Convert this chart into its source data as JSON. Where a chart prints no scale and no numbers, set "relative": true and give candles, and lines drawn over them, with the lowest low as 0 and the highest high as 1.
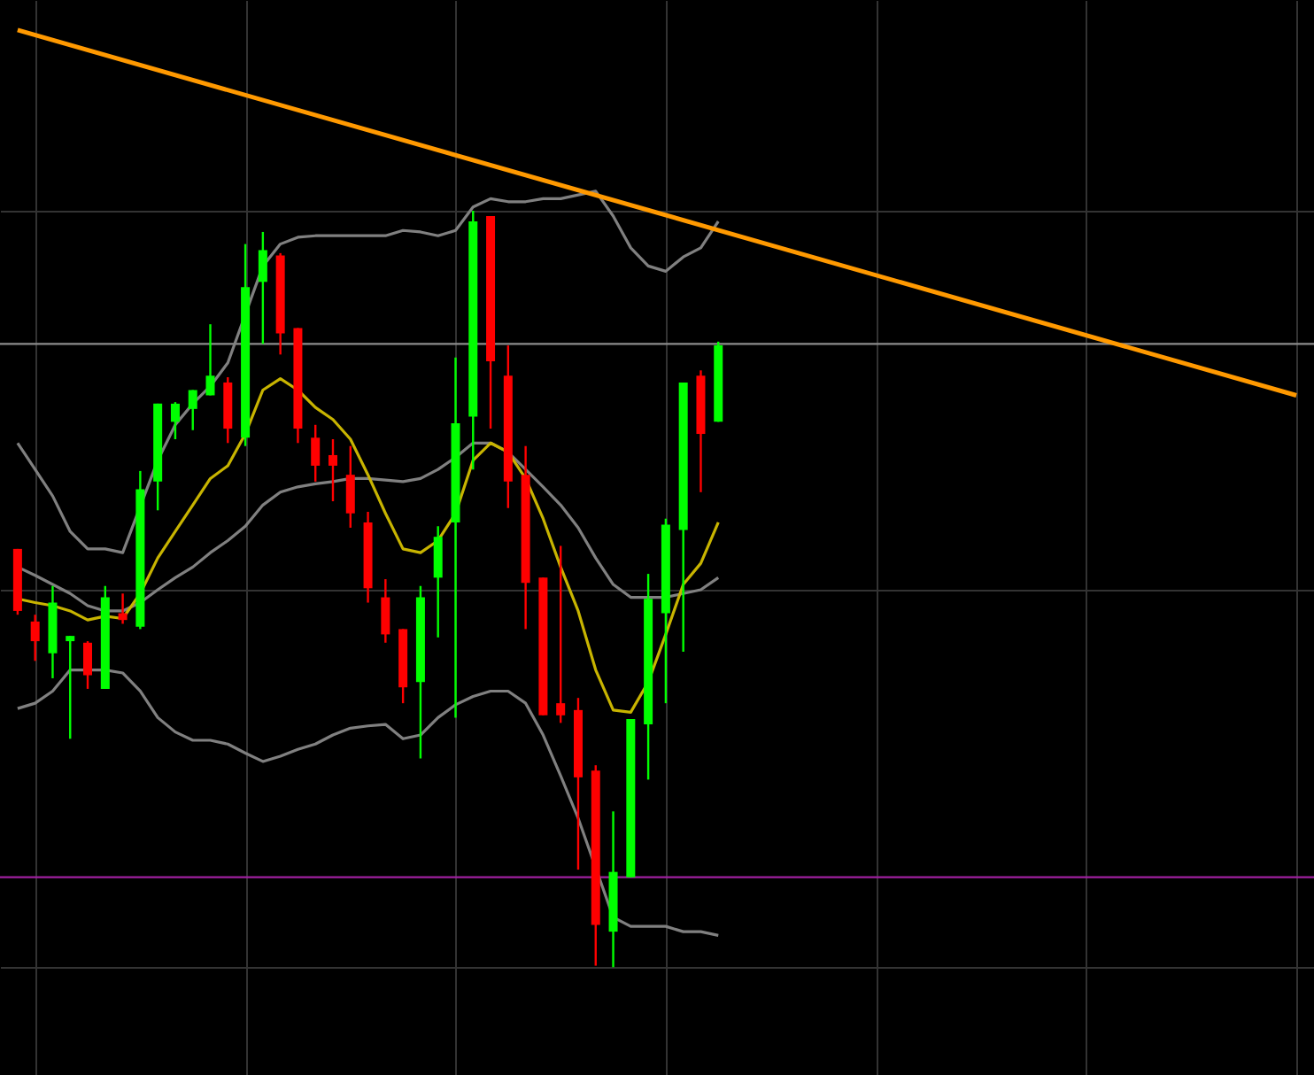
{
  "chart_data": {
    "type": "candlestick",
    "relative": true,
    "grid": true,
    "categories": [
      null,
      null,
      null,
      null,
      null,
      null,
      null,
      null,
      null,
      null,
      null,
      null,
      null,
      null,
      null,
      null,
      null,
      null,
      null,
      null,
      null,
      null,
      null,
      null,
      null,
      null,
      null,
      null,
      null,
      null,
      null,
      null,
      null,
      null,
      null,
      null,
      null,
      null,
      null,
      null,
      null,
      null,
      null,
      null,
      null,
      null,
      null,
      null,
      null,
      null,
      null,
      null,
      null,
      null,
      null,
      null,
      null,
      null,
      null,
      null,
      null,
      null,
      null,
      null,
      null,
      null,
      null,
      null,
      null,
      null,
      null,
      null,
      null,
      null
    ],
    "ohlc": [
      [
        0.553,
        0.553,
        0.466,
        0.471
      ],
      [
        0.457,
        0.466,
        0.405,
        0.431
      ],
      [
        0.415,
        0.504,
        0.382,
        0.482
      ],
      [
        0.431,
        0.438,
        0.302,
        0.438
      ],
      [
        0.429,
        0.431,
        0.368,
        0.386
      ],
      [
        0.368,
        0.504,
        0.368,
        0.489
      ],
      [
        0.468,
        0.494,
        0.454,
        0.459
      ],
      [
        0.45,
        0.656,
        0.447,
        0.632
      ],
      [
        0.642,
        0.745,
        0.604,
        0.745
      ],
      [
        0.721,
        0.747,
        0.698,
        0.745
      ],
      [
        0.738,
        0.763,
        0.71,
        0.763
      ],
      [
        0.756,
        0.85,
        0.756,
        0.782
      ],
      [
        0.773,
        0.78,
        0.693,
        0.712
      ],
      [
        0.7,
        0.956,
        0.689,
        0.899
      ],
      [
        0.906,
        0.972,
        0.824,
        0.948
      ],
      [
        0.941,
        0.944,
        0.81,
        0.838
      ],
      [
        0.845,
        0.845,
        0.693,
        0.712
      ],
      [
        0.7,
        0.717,
        0.642,
        0.663
      ],
      [
        0.677,
        0.698,
        0.616,
        0.663
      ],
      [
        0.651,
        0.689,
        0.581,
        0.6
      ],
      [
        0.588,
        0.602,
        0.482,
        0.501
      ],
      [
        0.489,
        0.513,
        0.429,
        0.44
      ],
      [
        0.447,
        0.447,
        0.349,
        0.37
      ],
      [
        0.377,
        0.504,
        0.276,
        0.489
      ],
      [
        0.515,
        0.583,
        0.436,
        0.569
      ],
      [
        0.588,
        0.806,
        0.33,
        0.719
      ],
      [
        0.728,
        1,
        0.658,
        0.986
      ],
      [
        0.993,
        0.993,
        0.712,
        0.801
      ],
      [
        0.782,
        0.822,
        0.607,
        0.642
      ],
      [
        0.651,
        0.689,
        0.447,
        0.508
      ],
      [
        0.515,
        0.515,
        0.333,
        0.333
      ],
      [
        0.349,
        0.557,
        0.323,
        0.333
      ],
      [
        0.34,
        0.356,
        0.129,
        0.251
      ],
      [
        0.26,
        0.267,
        0.002,
        0.056
      ],
      [
        0.047,
        0.206,
        0,
        0.126
      ],
      [
        0.119,
        0.328,
        0.119,
        0.328
      ],
      [
        0.321,
        0.52,
        0.248,
        0.487
      ],
      [
        0.468,
        0.593,
        0.349,
        0.585
      ],
      [
        0.578,
        0.773,
        0.417,
        0.773
      ],
      [
        0.782,
        0.789,
        0.628,
        0.705
      ],
      [
        0.721,
        0.827,
        0.721,
        0.822
      ],
      null,
      null,
      null,
      null,
      null,
      null,
      null,
      null,
      null,
      null,
      null,
      null,
      null,
      null,
      null,
      null,
      null,
      null,
      null,
      null,
      null,
      null,
      null,
      null,
      null,
      null,
      null,
      null,
      null,
      null,
      null,
      null,
      null
    ],
    "colors": [
      "#ff0000",
      "#ff0000",
      "#00ff00",
      "#00ff00",
      "#ff0000",
      "#00ff00",
      "#ff0000",
      "#00ff00",
      "#00ff00",
      "#00ff00",
      "#00ff00",
      "#00ff00",
      "#ff0000",
      "#00ff00",
      "#00ff00",
      "#ff0000",
      "#ff0000",
      "#ff0000",
      "#ff0000",
      "#ff0000",
      "#ff0000",
      "#ff0000",
      "#ff0000",
      "#00ff00",
      "#00ff00",
      "#00ff00",
      "#00ff00",
      "#ff0000",
      "#ff0000",
      "#ff0000",
      "#ff0000",
      "#ff0000",
      "#ff0000",
      "#ff0000",
      "#00ff00",
      "#00ff00",
      "#00ff00",
      "#00ff00",
      "#00ff00",
      "#ff0000",
      "#00ff00",
      null,
      null,
      null,
      null,
      null,
      null,
      null,
      null,
      null,
      null,
      null,
      null,
      null,
      null,
      null,
      null,
      null,
      null,
      null,
      null,
      null,
      null,
      null,
      null,
      null,
      null,
      null,
      null,
      null,
      null,
      null,
      null,
      null
    ],
    "series": [
      {
        "type": "line",
        "color": "#808080",
        "values": [
          0.693,
          0.658,
          0.623,
          0.576,
          0.553,
          0.553,
          0.548,
          null,
          0.67,
          0.717,
          0.745,
          0.768,
          0.799,
          null,
          0.927,
          0.956,
          0.965,
          0.967,
          0.967,
          0.967,
          0.967,
          0.967,
          0.974,
          0.972,
          0.967,
          0.974,
          1.005,
          1.016,
          1.012,
          1.012,
          1.016,
          1.016,
          1.021,
          1.026,
          0.993,
          0.951,
          0.927,
          0.92,
          0.939,
          0.951,
          0.986,
          null,
          null,
          null,
          null,
          null,
          null,
          null,
          null,
          null,
          null,
          null,
          null,
          null,
          null,
          null,
          null,
          null,
          null,
          null,
          null,
          null,
          null,
          null,
          null,
          null,
          null,
          null,
          null,
          null,
          null,
          null,
          null,
          null
        ]
      },
      {
        "type": "line",
        "color": "#808080",
        "values": [
          0.529,
          0.518,
          0.506,
          0.494,
          0.478,
          0.471,
          0.471,
          0.482,
          0.499,
          0.515,
          0.529,
          0.548,
          0.564,
          0.583,
          0.611,
          0.628,
          0.635,
          0.639,
          0.642,
          0.646,
          0.646,
          0.644,
          0.642,
          0.646,
          0.658,
          0.674,
          0.693,
          0.693,
          0.681,
          0.658,
          0.635,
          0.611,
          0.581,
          0.541,
          0.506,
          0.489,
          0.489,
          0.489,
          0.494,
          0.499,
          0.515,
          null,
          null,
          null,
          null,
          null,
          null,
          null,
          null,
          null,
          null,
          null,
          null,
          null,
          null,
          null,
          null,
          null,
          null,
          null,
          null,
          null,
          null,
          null,
          null,
          null,
          null,
          null,
          null,
          null,
          null,
          null,
          null,
          null
        ]
      },
      {
        "type": "line",
        "color": "#808080",
        "values": [
          0.342,
          0.349,
          0.365,
          0.393,
          0.393,
          0.393,
          0.389,
          0.365,
          0.33,
          0.311,
          0.3,
          0.3,
          0.295,
          0.283,
          0.272,
          0.279,
          0.288,
          0.295,
          0.307,
          0.316,
          0.319,
          0.321,
          0.302,
          0.307,
          0.33,
          0.347,
          0.358,
          0.365,
          0.365,
          0.349,
          0.307,
          0.253,
          0.197,
          null,
          0.066,
          0.054,
          0.054,
          0.054,
          0.047,
          0.047,
          0.042,
          null,
          null,
          null,
          null,
          null,
          null,
          null,
          null,
          null,
          null,
          null,
          null,
          null,
          null,
          null,
          null,
          null,
          null,
          null,
          null,
          null,
          null,
          null,
          null,
          null,
          null,
          null,
          null,
          null,
          null,
          null,
          null,
          null
        ]
      },
      {
        "type": "line",
        "color": "#c8b400",
        "values": [
          0.487,
          0.482,
          0.478,
          0.471,
          0.459,
          0.464,
          0.461,
          0.494,
          0.541,
          0.576,
          0.611,
          0.646,
          0.663,
          0.705,
          0.763,
          0.778,
          0.763,
          0.74,
          0.724,
          0.698,
          0.651,
          0.6,
          0.553,
          0.548,
          0.564,
          0.6,
          0.67,
          0.693,
          0.681,
          0.646,
          0.593,
          0.529,
          0.471,
          0.393,
          0.34,
          0.337,
          0.377,
          0.44,
          0.506,
          0.534,
          0.588,
          null,
          null,
          null,
          null,
          null,
          null,
          null,
          null,
          null,
          null,
          null,
          null,
          null,
          null,
          null,
          null,
          null,
          null,
          null,
          null,
          null,
          null,
          null,
          null,
          null,
          null,
          null,
          null,
          null,
          null,
          null,
          null,
          null
        ]
      },
      {
        "type": "line",
        "color": "#ff9900",
        "values": [
          1.239,
          null,
          null,
          null,
          null,
          null,
          null,
          null,
          null,
          null,
          null,
          null,
          null,
          null,
          null,
          null,
          null,
          null,
          null,
          null,
          null,
          null,
          null,
          null,
          null,
          null,
          null,
          null,
          null,
          null,
          null,
          null,
          null,
          null,
          null,
          null,
          null,
          null,
          null,
          null,
          null,
          null,
          null,
          null,
          null,
          null,
          null,
          null,
          null,
          null,
          null,
          null,
          null,
          null,
          null,
          null,
          null,
          null,
          null,
          null,
          null,
          null,
          null,
          null,
          null,
          null,
          null,
          null,
          null,
          null,
          null,
          null,
          null,
          0.756
        ]
      }
    ],
    "ref_lines": [
      {
        "axis": "y",
        "value": 0.824,
        "color": "#8c8c8c"
      },
      {
        "axis": "y",
        "value": 0.119,
        "color": "#a020a0"
      }
    ]
  }
}
